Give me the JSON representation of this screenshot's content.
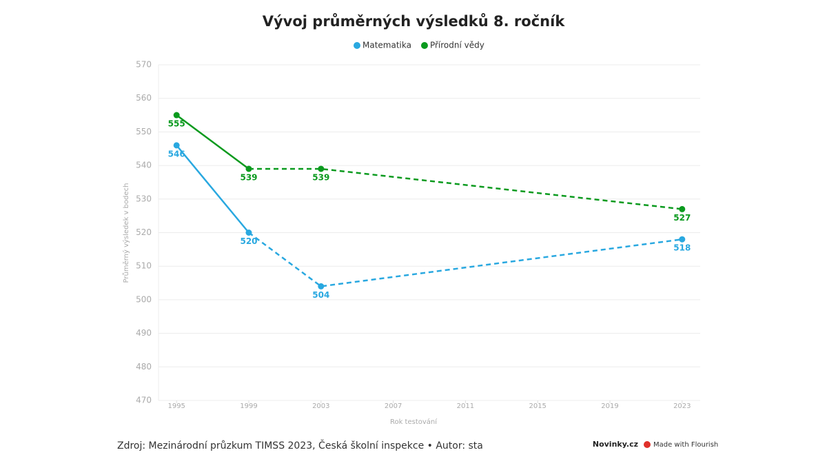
{
  "chart_data": {
    "type": "line",
    "title": "Vývoj průměrných výsledků 8. ročník",
    "x": [
      1995,
      1999,
      2003,
      2023
    ],
    "series": [
      {
        "name": "Matematika",
        "color": "#29a8e0",
        "values": [
          546,
          520,
          504,
          518
        ]
      },
      {
        "name": "Přírodní vědy",
        "color": "#0a9a1e",
        "values": [
          555,
          539,
          539,
          527
        ]
      }
    ],
    "dashed_from": 1999,
    "xlim": [
      1994,
      2024
    ],
    "xticks": [
      1995,
      1999,
      2003,
      2007,
      2011,
      2015,
      2019,
      2023
    ],
    "ylim": [
      470,
      570
    ],
    "yticks": [
      470,
      480,
      490,
      500,
      510,
      520,
      530,
      540,
      550,
      560,
      570
    ],
    "grid": true,
    "legend": "top",
    "xlabel": "Rok testování",
    "ylabel": "Průměrný výsledek v bodech",
    "source": "Zdroj: Mezinárodní průzkum TIMSS 2023, Česká školní inspekce • Autor: sta",
    "brand": "Novinky.cz",
    "credit": "Made with Flourish"
  }
}
